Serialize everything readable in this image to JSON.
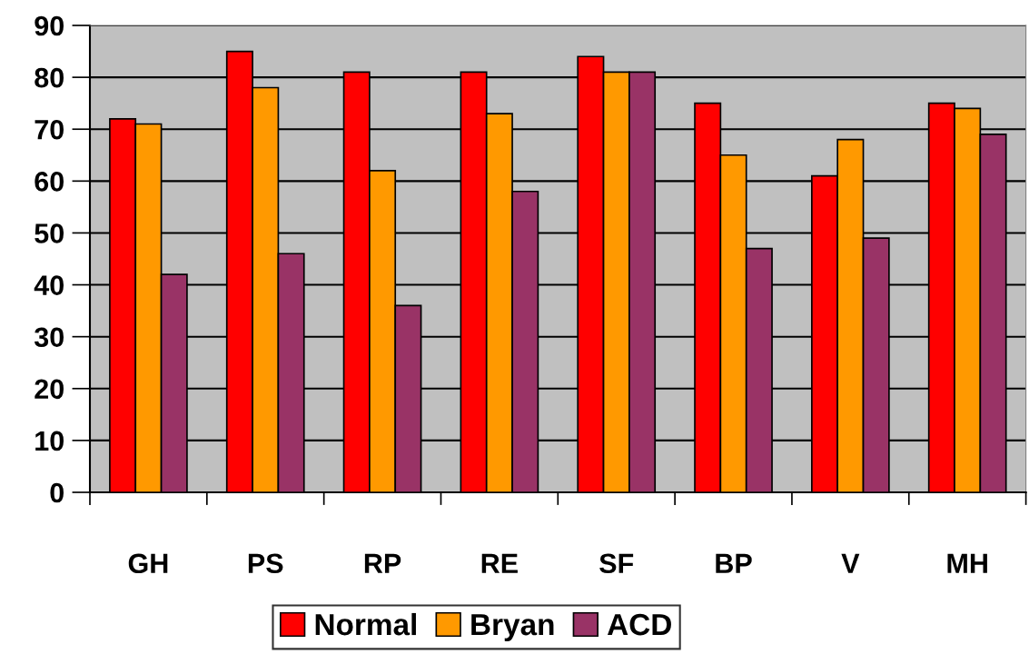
{
  "chart_data": {
    "type": "bar",
    "categories": [
      "GH",
      "PS",
      "RP",
      "RE",
      "SF",
      "BP",
      "V",
      "MH"
    ],
    "series": [
      {
        "name": "Normal",
        "color": "#ff0000",
        "values": [
          72,
          85,
          81,
          81,
          84,
          75,
          61,
          75
        ]
      },
      {
        "name": "Bryan",
        "color": "#ff9900",
        "values": [
          71,
          78,
          62,
          73,
          81,
          65,
          68,
          74
        ]
      },
      {
        "name": "ACD",
        "color": "#993366",
        "values": [
          42,
          46,
          36,
          58,
          81,
          47,
          49,
          69
        ]
      }
    ],
    "ylim": [
      0,
      90
    ],
    "yticks": [
      0,
      10,
      20,
      30,
      40,
      50,
      60,
      70,
      80,
      90
    ],
    "grid": "y",
    "legend": "bottom"
  }
}
